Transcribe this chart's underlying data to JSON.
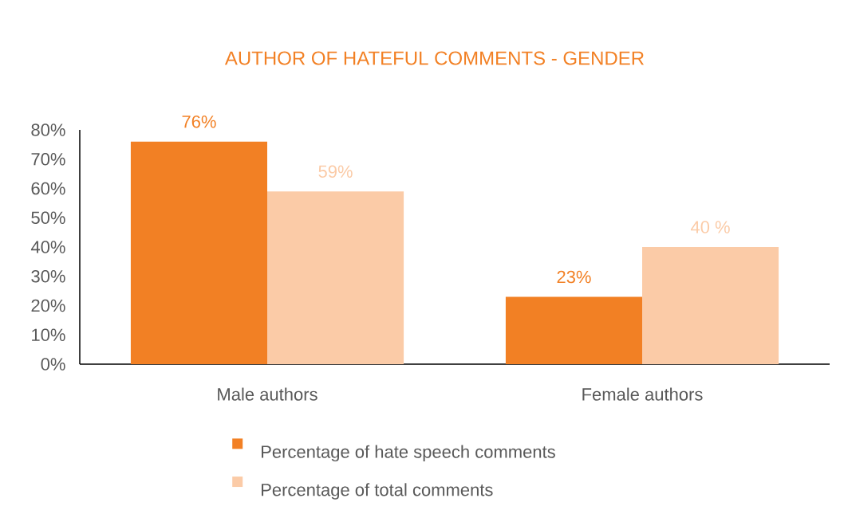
{
  "chart_data": {
    "type": "bar",
    "title": "AUTHOR OF HATEFUL COMMENTS - GENDER",
    "categories": [
      "Male authors",
      "Female authors"
    ],
    "series": [
      {
        "name": "Percentage of hate speech comments",
        "color": "#f28024",
        "values": [
          76,
          23
        ],
        "value_labels": [
          "76%",
          "23%"
        ]
      },
      {
        "name": "Percentage of total comments",
        "color": "#fbcba7",
        "values": [
          59,
          40
        ],
        "value_labels": [
          "59%",
          "40 %"
        ]
      }
    ],
    "ylim": [
      0,
      80
    ],
    "yticks": [
      {
        "value": 0,
        "label": "0%"
      },
      {
        "value": 10,
        "label": "10%"
      },
      {
        "value": 20,
        "label": "20%"
      },
      {
        "value": 30,
        "label": "30%"
      },
      {
        "value": 40,
        "label": "40%"
      },
      {
        "value": 50,
        "label": "50%"
      },
      {
        "value": 60,
        "label": "60%"
      },
      {
        "value": 70,
        "label": "70%"
      },
      {
        "value": 80,
        "label": "80%"
      }
    ],
    "legend": "bottom"
  }
}
